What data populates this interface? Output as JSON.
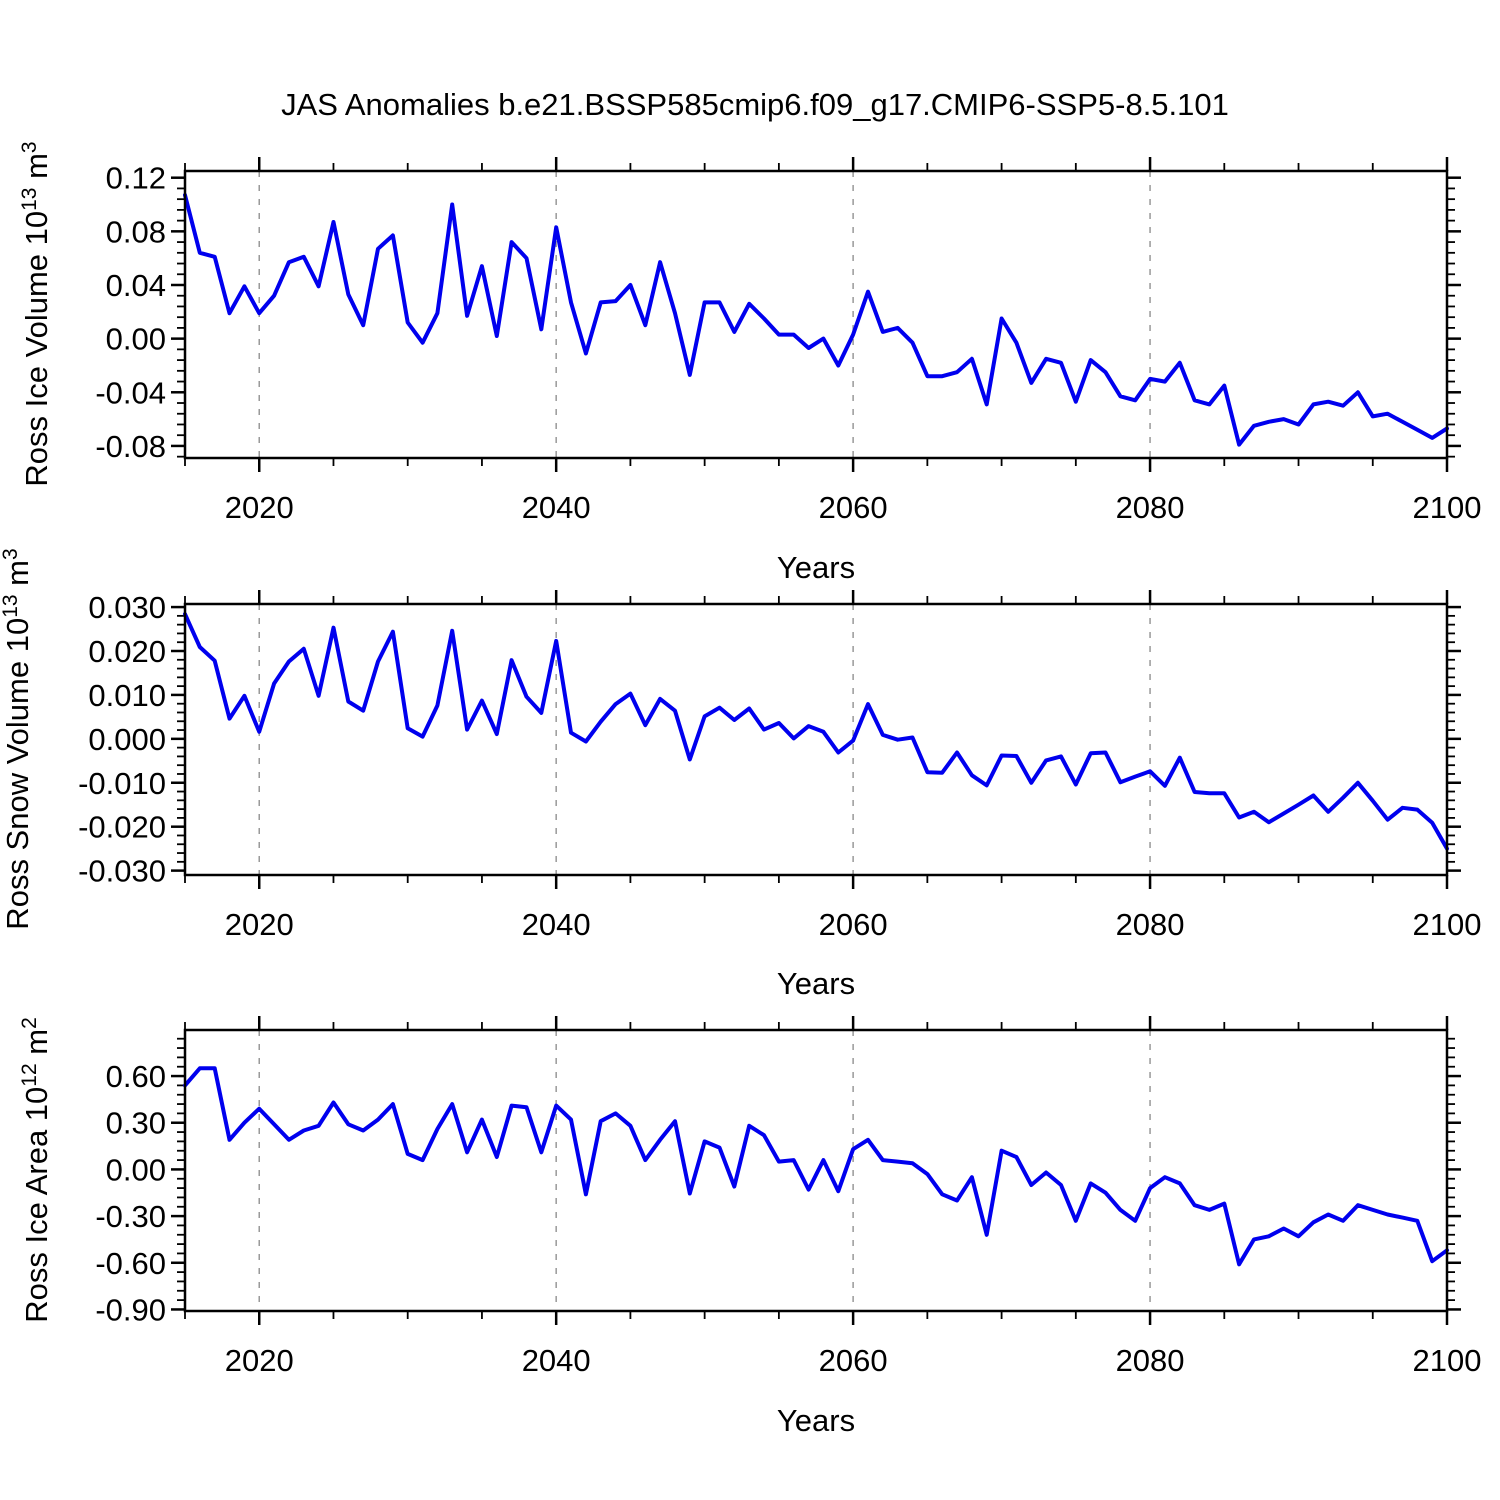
{
  "title": "JAS Anomalies b.e21.BSSP585cmip6.f09_g17.CMIP6-SSP5-8.5.101",
  "colors": {
    "line": "#0000ee",
    "grid": "#999999",
    "axis": "#000000"
  },
  "x": {
    "label": "Years",
    "start": 2015,
    "end": 2100,
    "ticks": [
      "2020",
      "2040",
      "2060",
      "2080",
      "2100"
    ],
    "tick_values": [
      2020,
      2040,
      2060,
      2080,
      2100
    ],
    "minor_step": 5,
    "gridlines": [
      2020,
      2040,
      2060,
      2080
    ]
  },
  "chart_data": [
    {
      "type": "line",
      "name": "ross-ice-volume",
      "ylabel_parts": [
        [
          "t",
          "Ross Ice Volume 10"
        ],
        [
          "s",
          "13"
        ],
        [
          "t",
          " m"
        ],
        [
          "s",
          "3"
        ]
      ],
      "ylim": [
        -0.089,
        0.125
      ],
      "yticks": [
        {
          "v": 0.12,
          "label": "0.12"
        },
        {
          "v": 0.08,
          "label": "0.08"
        },
        {
          "v": 0.04,
          "label": "0.04"
        },
        {
          "v": 0.0,
          "label": "0.00"
        },
        {
          "v": -0.04,
          "label": "-0.04"
        },
        {
          "v": -0.08,
          "label": "-0.08"
        }
      ],
      "ymajor_step": 0.04,
      "yminor_step": 0.008,
      "x0": 2015,
      "values": [
        0.107,
        0.064,
        0.061,
        0.019,
        0.039,
        0.019,
        0.032,
        0.057,
        0.061,
        0.039,
        0.087,
        0.033,
        0.01,
        0.067,
        0.077,
        0.012,
        -0.003,
        0.019,
        0.1,
        0.017,
        0.054,
        0.002,
        0.072,
        0.06,
        0.007,
        0.083,
        0.027,
        -0.011,
        0.027,
        0.028,
        0.04,
        0.01,
        0.057,
        0.019,
        -0.027,
        0.027,
        0.027,
        0.005,
        0.026,
        0.015,
        0.003,
        0.003,
        -0.007,
        0.0,
        -0.02,
        0.003,
        0.035,
        0.005,
        0.008,
        -0.003,
        -0.028,
        -0.028,
        -0.025,
        -0.015,
        -0.049,
        0.015,
        -0.003,
        -0.033,
        -0.015,
        -0.018,
        -0.047,
        -0.016,
        -0.025,
        -0.043,
        -0.046,
        -0.03,
        -0.032,
        -0.018,
        -0.046,
        -0.049,
        -0.035,
        -0.079,
        -0.065,
        -0.062,
        -0.06,
        -0.064,
        -0.049,
        -0.047,
        -0.05,
        -0.04,
        -0.058,
        -0.056,
        -0.062,
        -0.068,
        -0.074,
        -0.067
      ]
    },
    {
      "type": "line",
      "name": "ross-snow-volume",
      "ylabel_parts": [
        [
          "t",
          "Ross Snow Volume 10"
        ],
        [
          "s",
          "13"
        ],
        [
          "t",
          " m"
        ],
        [
          "s",
          "3"
        ]
      ],
      "ylim": [
        -0.031,
        0.0307
      ],
      "yticks": [
        {
          "v": 0.03,
          "label": "0.030"
        },
        {
          "v": 0.02,
          "label": "0.020"
        },
        {
          "v": 0.01,
          "label": "0.010"
        },
        {
          "v": 0.0,
          "label": "0.000"
        },
        {
          "v": -0.01,
          "label": "-0.010"
        },
        {
          "v": -0.02,
          "label": "-0.020"
        },
        {
          "v": -0.03,
          "label": "-0.030"
        }
      ],
      "ymajor_step": 0.01,
      "yminor_step": 0.002,
      "x0": 2015,
      "values": [
        0.0284,
        0.0209,
        0.0178,
        0.0046,
        0.0098,
        0.0016,
        0.0126,
        0.0176,
        0.0205,
        0.0098,
        0.0253,
        0.0085,
        0.0064,
        0.0176,
        0.0244,
        0.0024,
        0.0005,
        0.0076,
        0.0246,
        0.0021,
        0.0087,
        0.0011,
        0.0179,
        0.0096,
        0.0059,
        0.0223,
        0.0014,
        -0.0006,
        0.0039,
        0.0079,
        0.0103,
        0.0031,
        0.0091,
        0.0064,
        -0.0047,
        0.0051,
        0.0071,
        0.0043,
        0.0069,
        0.0021,
        0.0036,
        0.0001,
        0.0029,
        0.0016,
        -0.0031,
        -0.0004,
        0.0079,
        0.0009,
        -0.0002,
        0.0003,
        -0.0076,
        -0.0077,
        -0.0031,
        -0.0083,
        -0.0106,
        -0.0038,
        -0.0039,
        -0.01,
        -0.0049,
        -0.004,
        -0.0104,
        -0.0033,
        -0.0031,
        -0.0099,
        -0.0086,
        -0.0074,
        -0.0107,
        -0.0043,
        -0.0121,
        -0.0124,
        -0.0124,
        -0.0179,
        -0.0166,
        -0.019,
        -0.017,
        -0.015,
        -0.0129,
        -0.0166,
        -0.0134,
        -0.01,
        -0.0141,
        -0.0184,
        -0.0157,
        -0.0161,
        -0.0191,
        -0.025
      ]
    },
    {
      "type": "line",
      "name": "ross-ice-area",
      "ylabel_parts": [
        [
          "t",
          "Ross Ice Area 10"
        ],
        [
          "s",
          "12"
        ],
        [
          "t",
          " m"
        ],
        [
          "s",
          "2"
        ]
      ],
      "ylim": [
        -0.91,
        0.896
      ],
      "yticks": [
        {
          "v": 0.6,
          "label": "0.60"
        },
        {
          "v": 0.3,
          "label": "0.30"
        },
        {
          "v": 0.0,
          "label": "0.00"
        },
        {
          "v": -0.3,
          "label": "-0.30"
        },
        {
          "v": -0.6,
          "label": "-0.60"
        },
        {
          "v": -0.9,
          "label": "-0.90"
        }
      ],
      "ymajor_step": 0.3,
      "yminor_step": 0.06,
      "x0": 2015,
      "values": [
        0.54,
        0.65,
        0.65,
        0.19,
        0.3,
        0.39,
        0.29,
        0.19,
        0.25,
        0.28,
        0.43,
        0.29,
        0.25,
        0.32,
        0.42,
        0.1,
        0.06,
        0.26,
        0.42,
        0.11,
        0.32,
        0.08,
        0.41,
        0.4,
        0.11,
        0.41,
        0.32,
        -0.16,
        0.31,
        0.36,
        0.28,
        0.06,
        0.19,
        0.31,
        -0.155,
        0.18,
        0.14,
        -0.11,
        0.28,
        0.22,
        0.05,
        0.06,
        -0.13,
        0.06,
        -0.14,
        0.13,
        0.19,
        0.06,
        0.05,
        0.04,
        -0.03,
        -0.16,
        -0.2,
        -0.05,
        -0.42,
        0.12,
        0.08,
        -0.1,
        -0.02,
        -0.1,
        -0.33,
        -0.09,
        -0.15,
        -0.26,
        -0.33,
        -0.12,
        -0.05,
        -0.09,
        -0.23,
        -0.26,
        -0.22,
        -0.61,
        -0.45,
        -0.43,
        -0.38,
        -0.43,
        -0.34,
        -0.29,
        -0.33,
        -0.23,
        -0.26,
        -0.29,
        -0.31,
        -0.33,
        -0.59,
        -0.52
      ]
    }
  ]
}
